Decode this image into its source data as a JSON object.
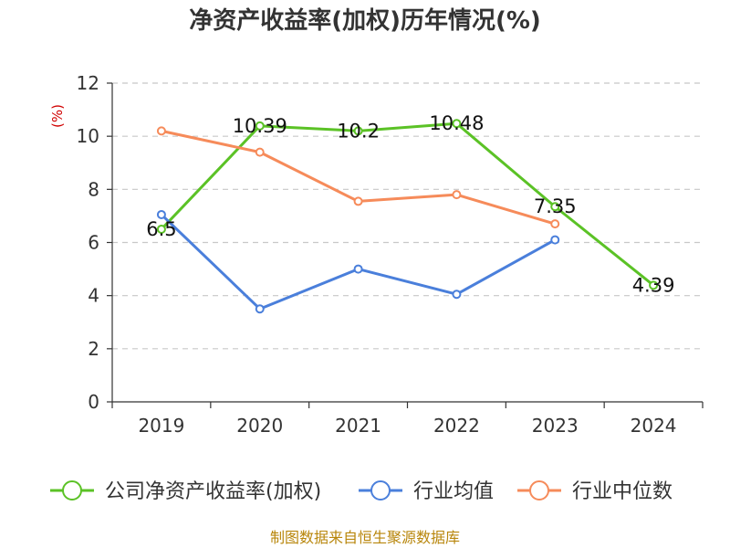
{
  "chart_data": {
    "type": "line",
    "title": "净资产收益率(加权)历年情况(%)",
    "ylabel": "(%)",
    "xlabel": "",
    "categories": [
      "2019",
      "2020",
      "2021",
      "2022",
      "2023",
      "2024"
    ],
    "ylim": [
      0,
      12
    ],
    "yticks": [
      0,
      2,
      4,
      6,
      8,
      10,
      12
    ],
    "grid": true,
    "legend_position": "bottom",
    "series": [
      {
        "name": "公司净资产收益率(加权)",
        "color": "#5bc226",
        "values": [
          6.5,
          10.39,
          10.2,
          10.48,
          7.35,
          4.39
        ],
        "labels": [
          "6.5",
          "10.39",
          "10.2",
          "10.48",
          "7.35",
          "4.39"
        ]
      },
      {
        "name": "行业均值",
        "color": "#4a7fdb",
        "values": [
          7.05,
          3.5,
          5.0,
          4.05,
          6.1,
          null
        ],
        "labels": null
      },
      {
        "name": "行业中位数",
        "color": "#f68b5a",
        "values": [
          10.2,
          9.4,
          7.55,
          7.8,
          6.7,
          null
        ],
        "labels": null
      }
    ]
  },
  "footer": "制图数据来自恒生聚源数据库"
}
